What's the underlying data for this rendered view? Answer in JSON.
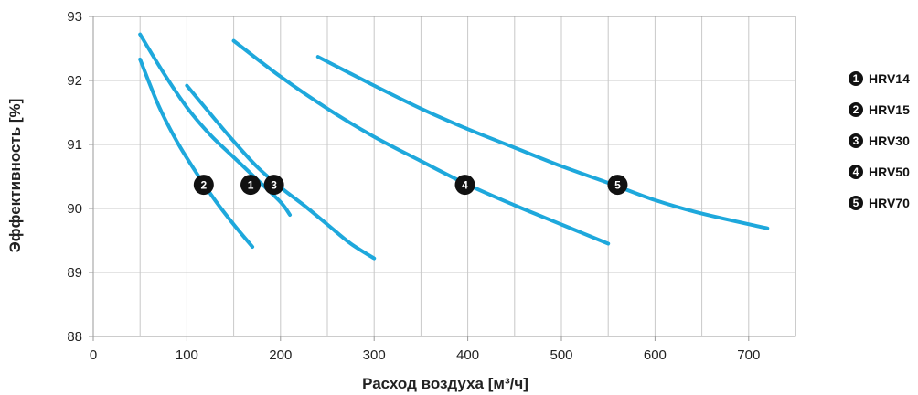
{
  "chart_data": {
    "type": "line",
    "title": "",
    "xlabel": "Расход воздуха [м³/ч]",
    "ylabel": "Эффективность [%]",
    "xlim": [
      0,
      750
    ],
    "ylim": [
      88,
      93
    ],
    "x_ticks": [
      "0",
      "100",
      "200",
      "300",
      "400",
      "500",
      "600",
      "700"
    ],
    "y_ticks": [
      "88",
      "89",
      "90",
      "91",
      "92",
      "93"
    ],
    "grid": true,
    "legend_position": "right",
    "line_color": "#1ea8dc",
    "marker_color": "#111111",
    "series": [
      {
        "marker": "1",
        "name": "HRV14",
        "x": [
          50,
          75,
          100,
          125,
          150,
          175,
          200,
          210
        ],
        "y": [
          92.72,
          92.12,
          91.58,
          91.15,
          90.8,
          90.45,
          90.1,
          89.9
        ],
        "label_at": [
          168,
          90.37
        ]
      },
      {
        "marker": "2",
        "name": "HRV15",
        "x": [
          50,
          70,
          90,
          110,
          130,
          150,
          170
        ],
        "y": [
          92.33,
          91.6,
          91.03,
          90.56,
          90.13,
          89.75,
          89.4
        ],
        "label_at": [
          118,
          90.37
        ]
      },
      {
        "marker": "3",
        "name": "HRV30",
        "x": [
          100,
          125,
          150,
          175,
          200,
          225,
          250,
          275,
          300
        ],
        "y": [
          91.92,
          91.48,
          91.05,
          90.65,
          90.33,
          90.05,
          89.75,
          89.45,
          89.22
        ],
        "label_at": [
          193,
          90.37
        ]
      },
      {
        "marker": "4",
        "name": "HRV50",
        "x": [
          150,
          200,
          250,
          300,
          350,
          400,
          450,
          500,
          550
        ],
        "y": [
          92.62,
          92.06,
          91.56,
          91.12,
          90.74,
          90.37,
          90.05,
          89.75,
          89.45
        ],
        "label_at": [
          397,
          90.37
        ]
      },
      {
        "marker": "5",
        "name": "HRV70",
        "x": [
          240,
          300,
          350,
          400,
          450,
          500,
          550,
          600,
          650,
          720
        ],
        "y": [
          92.37,
          91.92,
          91.56,
          91.24,
          90.95,
          90.66,
          90.4,
          90.13,
          89.92,
          89.69
        ],
        "label_at": [
          560,
          90.37
        ]
      }
    ]
  }
}
